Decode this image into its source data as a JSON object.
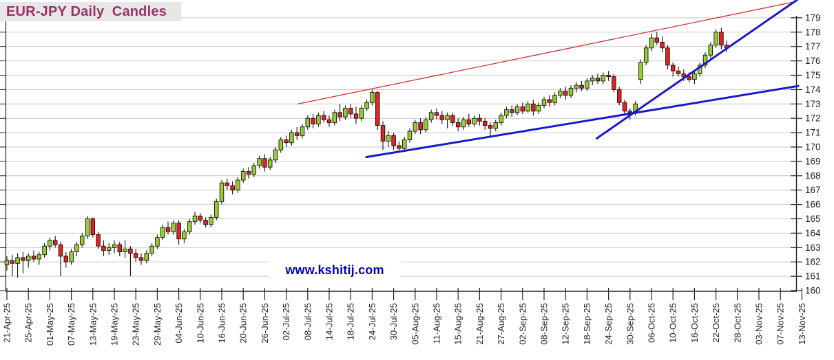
{
  "header": {
    "title": "EUR-JPY Daily  Candles"
  },
  "watermark": {
    "text": "www.kshitij.com"
  },
  "colors": {
    "title_fg": "#993366",
    "title_bg": "#e7e7e7",
    "watermark_fg": "#0000bb",
    "candle_up": "#99cc33",
    "candle_down": "#e32222",
    "candle_outline": "#111111",
    "grid": "#c9c9c9",
    "axis": "#222222",
    "label": "#222222",
    "trend_red": "#cc3333",
    "trend_blue": "#1a1aca"
  },
  "chart_data": {
    "type": "candlestick",
    "title": "EUR-JPY Daily Candles",
    "grid": "horizontal",
    "legend": "none",
    "y_axis": {
      "side": "right",
      "min": 160,
      "max": 179,
      "step": 1,
      "tick_labels": [
        "160",
        "161",
        "162",
        "163",
        "164",
        "165",
        "166",
        "167",
        "168",
        "169",
        "170",
        "171",
        "172",
        "173",
        "174",
        "175",
        "176",
        "177",
        "178",
        "179"
      ]
    },
    "x_axis": {
      "candles_per_tick": 4,
      "label_rotation": -90,
      "tick_labels": [
        "21-Apr-25",
        "25-Apr-25",
        "01-May-25",
        "07-May-25",
        "13-May-25",
        "19-May-25",
        "23-May-25",
        "29-May-25",
        "04-Jun-25",
        "10-Jun-25",
        "16-Jun-25",
        "20-Jun-25",
        "26-Jun-25",
        "02-Jul-25",
        "08-Jul-25",
        "14-Jul-25",
        "18-Jul-25",
        "24-Jul-25",
        "30-Jul-25",
        "05-Aug-25",
        "11-Aug-25",
        "15-Aug-25",
        "21-Aug-25",
        "27-Aug-25",
        "02-Sep-25",
        "08-Sep-25",
        "12-Sep-25",
        "18-Sep-25",
        "24-Sep-25",
        "30-Sep-25",
        "06-Oct-25",
        "10-Oct-25",
        "16-Oct-25",
        "22-Oct-25",
        "28-Oct-25",
        "03-Nov-25",
        "07-Nov-25",
        "13-Nov-25"
      ]
    },
    "candles_ohlc": [
      [
        161.8,
        162.4,
        161.4,
        162.1
      ],
      [
        162.1,
        162.5,
        161.0,
        161.9
      ],
      [
        161.9,
        162.6,
        160.9,
        162.3
      ],
      [
        162.3,
        162.7,
        161.2,
        162.1
      ],
      [
        162.1,
        162.6,
        161.6,
        162.4
      ],
      [
        162.4,
        162.8,
        162.0,
        162.2
      ],
      [
        162.2,
        162.7,
        161.8,
        162.5
      ],
      [
        162.5,
        163.3,
        162.3,
        163.1
      ],
      [
        163.1,
        163.7,
        162.8,
        163.5
      ],
      [
        163.5,
        163.8,
        163.0,
        163.2
      ],
      [
        163.2,
        163.4,
        161.0,
        162.4
      ],
      [
        162.4,
        162.7,
        161.6,
        162.0
      ],
      [
        162.0,
        162.9,
        161.8,
        162.7
      ],
      [
        162.7,
        163.4,
        162.4,
        163.2
      ],
      [
        163.2,
        164.0,
        163.0,
        163.8
      ],
      [
        163.8,
        165.2,
        163.6,
        165.0
      ],
      [
        165.0,
        165.1,
        163.7,
        163.9
      ],
      [
        163.9,
        164.1,
        162.9,
        163.1
      ],
      [
        163.1,
        163.5,
        162.4,
        162.8
      ],
      [
        162.8,
        163.3,
        162.5,
        163.0
      ],
      [
        163.0,
        163.5,
        162.6,
        163.2
      ],
      [
        163.2,
        163.4,
        162.4,
        162.7
      ],
      [
        162.7,
        163.5,
        162.3,
        162.9
      ],
      [
        162.9,
        163.1,
        161.0,
        162.6
      ],
      [
        162.6,
        162.9,
        162.0,
        162.3
      ],
      [
        162.3,
        162.6,
        161.8,
        162.1
      ],
      [
        162.1,
        162.8,
        161.9,
        162.6
      ],
      [
        162.6,
        163.3,
        162.4,
        163.1
      ],
      [
        163.1,
        163.9,
        162.9,
        163.7
      ],
      [
        163.7,
        164.6,
        163.5,
        164.4
      ],
      [
        164.4,
        164.8,
        163.9,
        164.1
      ],
      [
        164.1,
        164.9,
        163.9,
        164.7
      ],
      [
        164.7,
        164.9,
        163.2,
        163.6
      ],
      [
        163.6,
        164.3,
        163.3,
        164.1
      ],
      [
        164.1,
        165.0,
        163.9,
        164.8
      ],
      [
        164.8,
        165.5,
        164.6,
        165.2
      ],
      [
        165.2,
        165.4,
        164.7,
        164.9
      ],
      [
        164.9,
        165.1,
        164.4,
        164.6
      ],
      [
        164.6,
        165.3,
        164.4,
        165.1
      ],
      [
        165.1,
        166.4,
        164.9,
        166.2
      ],
      [
        166.2,
        167.7,
        166.0,
        167.5
      ],
      [
        167.5,
        167.8,
        167.0,
        167.3
      ],
      [
        167.3,
        167.6,
        166.7,
        167.0
      ],
      [
        167.0,
        167.9,
        166.8,
        167.7
      ],
      [
        167.7,
        168.5,
        167.5,
        168.3
      ],
      [
        168.3,
        168.6,
        167.8,
        168.1
      ],
      [
        168.1,
        168.9,
        167.9,
        168.7
      ],
      [
        168.7,
        169.4,
        168.5,
        169.2
      ],
      [
        169.2,
        169.5,
        168.3,
        168.6
      ],
      [
        168.6,
        169.3,
        168.4,
        169.1
      ],
      [
        169.1,
        170.0,
        168.9,
        169.8
      ],
      [
        169.8,
        170.7,
        169.6,
        170.5
      ],
      [
        170.5,
        170.8,
        170.0,
        170.3
      ],
      [
        170.3,
        171.2,
        170.1,
        171.0
      ],
      [
        171.0,
        171.4,
        170.5,
        170.8
      ],
      [
        170.8,
        171.6,
        170.6,
        171.4
      ],
      [
        171.4,
        172.2,
        171.2,
        172.0
      ],
      [
        172.0,
        172.3,
        171.3,
        171.6
      ],
      [
        171.6,
        172.4,
        171.4,
        172.2
      ],
      [
        172.2,
        172.5,
        171.7,
        171.9
      ],
      [
        171.9,
        172.2,
        171.4,
        171.7
      ],
      [
        171.7,
        172.6,
        171.5,
        172.4
      ],
      [
        172.4,
        173.0,
        171.8,
        172.1
      ],
      [
        172.1,
        172.9,
        171.9,
        172.7
      ],
      [
        172.7,
        173.0,
        172.0,
        172.3
      ],
      [
        172.3,
        172.8,
        171.6,
        172.0
      ],
      [
        172.0,
        172.9,
        171.8,
        172.7
      ],
      [
        172.7,
        173.3,
        172.5,
        173.1
      ],
      [
        173.1,
        174.0,
        172.9,
        173.8
      ],
      [
        173.8,
        173.9,
        171.2,
        171.5
      ],
      [
        171.5,
        171.8,
        169.8,
        170.4
      ],
      [
        170.4,
        171.1,
        170.0,
        170.8
      ],
      [
        170.8,
        171.0,
        169.8,
        170.1
      ],
      [
        170.1,
        170.4,
        169.6,
        169.9
      ],
      [
        169.9,
        170.7,
        169.7,
        170.5
      ],
      [
        170.5,
        171.3,
        170.3,
        171.1
      ],
      [
        171.1,
        171.9,
        170.9,
        171.7
      ],
      [
        171.7,
        172.0,
        170.9,
        171.2
      ],
      [
        171.2,
        172.1,
        171.0,
        171.9
      ],
      [
        171.9,
        172.6,
        171.7,
        172.4
      ],
      [
        172.4,
        172.7,
        171.9,
        172.2
      ],
      [
        172.2,
        172.5,
        171.6,
        171.9
      ],
      [
        171.9,
        172.4,
        171.3,
        172.2
      ],
      [
        172.2,
        172.4,
        171.5,
        171.7
      ],
      [
        171.7,
        172.0,
        171.1,
        171.4
      ],
      [
        171.4,
        172.1,
        171.2,
        171.9
      ],
      [
        171.9,
        172.3,
        171.4,
        171.6
      ],
      [
        171.6,
        172.2,
        171.4,
        172.0
      ],
      [
        172.0,
        172.3,
        171.5,
        171.8
      ],
      [
        171.8,
        172.0,
        171.2,
        171.5
      ],
      [
        171.5,
        171.7,
        170.7,
        171.3
      ],
      [
        171.3,
        171.9,
        171.1,
        171.7
      ],
      [
        171.7,
        172.4,
        171.5,
        172.2
      ],
      [
        172.2,
        172.8,
        172.0,
        172.6
      ],
      [
        172.6,
        172.9,
        172.1,
        172.4
      ],
      [
        172.4,
        173.0,
        172.2,
        172.8
      ],
      [
        172.8,
        173.1,
        172.3,
        172.5
      ],
      [
        172.5,
        173.2,
        172.4,
        173.0
      ],
      [
        173.0,
        173.3,
        172.2,
        172.5
      ],
      [
        172.5,
        173.1,
        172.3,
        172.9
      ],
      [
        172.9,
        173.5,
        172.7,
        173.3
      ],
      [
        173.3,
        173.6,
        172.8,
        173.1
      ],
      [
        173.1,
        173.8,
        172.9,
        173.6
      ],
      [
        173.6,
        174.1,
        173.4,
        173.9
      ],
      [
        173.9,
        174.2,
        173.3,
        173.6
      ],
      [
        173.6,
        174.3,
        173.4,
        174.1
      ],
      [
        174.1,
        174.5,
        173.8,
        174.3
      ],
      [
        174.3,
        174.6,
        173.9,
        174.1
      ],
      [
        174.1,
        174.8,
        173.9,
        174.6
      ],
      [
        174.6,
        175.0,
        174.3,
        174.8
      ],
      [
        174.8,
        175.1,
        174.4,
        174.6
      ],
      [
        174.6,
        175.2,
        174.4,
        175.0
      ],
      [
        175.0,
        175.3,
        174.6,
        174.9
      ],
      [
        174.9,
        175.1,
        173.8,
        174.0
      ],
      [
        174.0,
        174.2,
        172.9,
        173.1
      ],
      [
        173.1,
        173.3,
        172.2,
        172.5
      ],
      [
        172.5,
        172.7,
        171.9,
        172.4
      ],
      [
        172.4,
        173.2,
        172.2,
        173.0
      ],
      [
        174.7,
        176.1,
        174.4,
        175.9
      ],
      [
        175.9,
        177.1,
        175.7,
        176.9
      ],
      [
        176.9,
        177.9,
        176.7,
        177.6
      ],
      [
        177.6,
        178.0,
        177.1,
        177.3
      ],
      [
        177.3,
        177.7,
        176.6,
        176.9
      ],
      [
        176.9,
        177.1,
        175.4,
        175.7
      ],
      [
        175.7,
        175.9,
        174.9,
        175.3
      ],
      [
        175.3,
        175.6,
        174.9,
        175.1
      ],
      [
        175.1,
        175.4,
        174.6,
        174.9
      ],
      [
        174.9,
        175.2,
        174.5,
        174.7
      ],
      [
        174.7,
        175.3,
        174.4,
        175.1
      ],
      [
        175.1,
        175.9,
        174.9,
        175.7
      ],
      [
        175.7,
        176.6,
        175.5,
        176.4
      ],
      [
        176.4,
        177.3,
        176.2,
        177.1
      ],
      [
        177.1,
        178.2,
        176.9,
        178.0
      ],
      [
        178.0,
        178.3,
        176.8,
        177.1
      ],
      [
        177.1,
        177.4,
        176.6,
        176.9
      ]
    ],
    "trendlines": [
      {
        "name": "upper-resistance-line",
        "color_key": "trend_red",
        "width": 1.3,
        "from": {
          "index": 54.2,
          "price": 173.0
        },
        "to": {
          "index": 146.5,
          "price": 180.1
        }
      },
      {
        "name": "steep-support-line",
        "color_key": "trend_blue",
        "width": 3,
        "from": {
          "index": 109.8,
          "price": 170.6
        },
        "to": {
          "index": 147.3,
          "price": 180.3
        }
      },
      {
        "name": "shallow-support-line",
        "color_key": "trend_blue",
        "width": 3,
        "from": {
          "index": 66.9,
          "price": 169.3
        },
        "to": {
          "index": 147.3,
          "price": 174.25
        }
      }
    ]
  }
}
